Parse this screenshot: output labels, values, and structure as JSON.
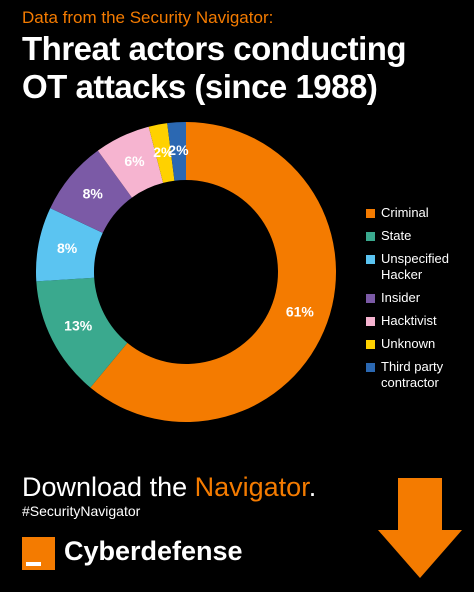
{
  "header": {
    "eyebrow": "Data from the Security Navigator:"
  },
  "chart_data": {
    "type": "donut",
    "title": "Threat actors conducting OT attacks (since 1988)",
    "categories": [
      "Criminal",
      "State",
      "Unspecified Hacker",
      "Insider",
      "Hacktivist",
      "Unknown",
      "Third party contractor"
    ],
    "values": [
      61,
      13,
      8,
      8,
      6,
      2,
      2
    ],
    "value_labels": [
      "61%",
      "13%",
      "8%",
      "8%",
      "6%",
      "2%",
      "2%"
    ],
    "colors": [
      "#f47b00",
      "#3aa98e",
      "#5bc4f1",
      "#7b5aa6",
      "#f6b4d0",
      "#ffd100",
      "#2b68b2"
    ],
    "legend": "right"
  },
  "footer": {
    "cta": [
      "Download the ",
      "Navigator",
      "."
    ],
    "hashtag": "#SecurityNavigator",
    "brand": "Cyberdefense"
  }
}
